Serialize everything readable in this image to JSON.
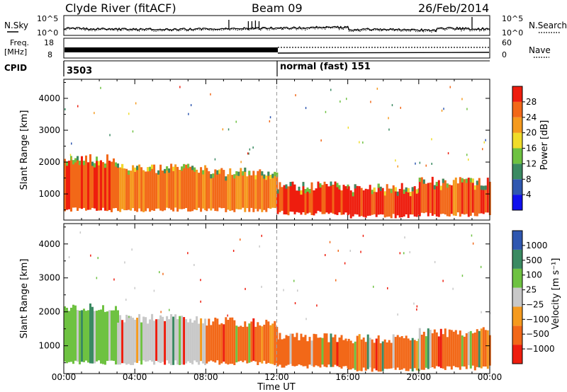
{
  "header": {
    "station": "Clyde River (fitACF)",
    "beam": "Beam 09",
    "date": "26/Feb/2014"
  },
  "top_panels": {
    "nsky_label": "N.Sky",
    "nsearch_label": "N.Search",
    "nsearch_style": "dotted",
    "noise_ticks": [
      "10^5",
      "10^0"
    ],
    "freq_label": "Freq.",
    "freq_unit": "[MHz]",
    "freq_ticks": [
      "18",
      "8"
    ],
    "nave_label": "Nave",
    "nave_style": "dotted",
    "nave_ticks": [
      "60",
      "0"
    ],
    "cpid_label": "CPID",
    "cpid_segments": [
      {
        "start_hour": 0,
        "text": "3503"
      },
      {
        "start_hour": 12,
        "text": "normal (fast) 151"
      }
    ]
  },
  "chart_data": [
    {
      "type": "heatmap",
      "title": "",
      "xlabel": "Time UT",
      "ylabel": "Slant Range [km]",
      "xlim_hours": [
        0,
        24
      ],
      "ylim": [
        180,
        4600
      ],
      "x_ticks": [
        "00:00",
        "04:00",
        "08:00",
        "12:00",
        "16:00",
        "20:00",
        "00:00"
      ],
      "y_ticks": [
        1000,
        2000,
        3000,
        4000
      ],
      "colorbar": {
        "label": "Power [dB]",
        "ticks": [
          "4",
          "8",
          "12",
          "16",
          "20",
          "24",
          "28"
        ],
        "range": [
          0,
          30
        ],
        "colors": [
          "#1010ee",
          "#2f57b0",
          "#3a8a62",
          "#6ec241",
          "#f0dc2a",
          "#f59a1e",
          "#f26818",
          "#ee1d0e"
        ]
      },
      "reference_line_hour": 12,
      "echo_bands": [
        {
          "start_hour": 0.0,
          "end_hour": 3.0,
          "range_low_km": 500,
          "range_high_km": 2100,
          "value": 26
        },
        {
          "start_hour": 3.0,
          "end_hour": 8.0,
          "range_low_km": 500,
          "range_high_km": 1800,
          "value": 24
        },
        {
          "start_hour": 8.0,
          "end_hour": 12.0,
          "range_low_km": 500,
          "range_high_km": 1700,
          "value": 24
        },
        {
          "start_hour": 12.0,
          "end_hour": 16.0,
          "range_low_km": 400,
          "range_high_km": 1250,
          "value": 28
        },
        {
          "start_hour": 16.0,
          "end_hour": 20.0,
          "range_low_km": 300,
          "range_high_km": 1200,
          "value": 28
        },
        {
          "start_hour": 20.0,
          "end_hour": 24.0,
          "range_low_km": 350,
          "range_high_km": 1400,
          "value": 26
        }
      ]
    },
    {
      "type": "heatmap",
      "title": "",
      "xlabel": "Time UT",
      "ylabel": "Slant Range [km]",
      "xlim_hours": [
        0,
        24
      ],
      "ylim": [
        180,
        4600
      ],
      "x_ticks": [
        "00:00",
        "04:00",
        "08:00",
        "12:00",
        "16:00",
        "20:00",
        "00:00"
      ],
      "y_ticks": [
        1000,
        2000,
        3000,
        4000
      ],
      "colorbar": {
        "label": "Velocity [m s⁻¹]",
        "ticks": [
          "1000",
          "500",
          "100",
          "25",
          "−25",
          "−100",
          "−500",
          "−1000"
        ],
        "colors": [
          "#2f57b0",
          "#3a8a62",
          "#6ec241",
          "#c8c8c8",
          "#f59a1e",
          "#f26818",
          "#ee1d0e"
        ]
      },
      "reference_line_hour": 12,
      "echo_bands": [
        {
          "start_hour": 0.0,
          "end_hour": 3.0,
          "range_low_km": 500,
          "range_high_km": 2100,
          "value": 100
        },
        {
          "start_hour": 3.0,
          "end_hour": 8.0,
          "range_low_km": 500,
          "range_high_km": 1800,
          "value": 25
        },
        {
          "start_hour": 8.0,
          "end_hour": 12.0,
          "range_low_km": 500,
          "range_high_km": 1700,
          "value": -100
        },
        {
          "start_hour": 12.0,
          "end_hour": 16.0,
          "range_low_km": 400,
          "range_high_km": 1250,
          "value": -100
        },
        {
          "start_hour": 16.0,
          "end_hour": 20.0,
          "range_low_km": 300,
          "range_high_km": 1200,
          "value": -100
        },
        {
          "start_hour": 20.0,
          "end_hour": 24.0,
          "range_low_km": 350,
          "range_high_km": 1400,
          "value": -100
        }
      ]
    }
  ]
}
